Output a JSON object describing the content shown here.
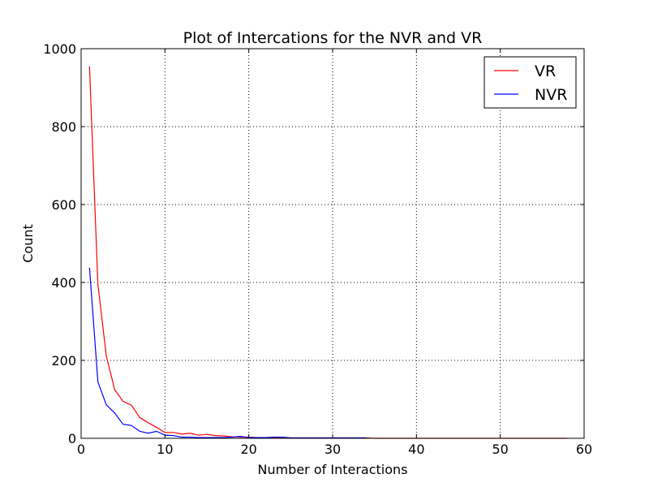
{
  "chart_data": {
    "type": "line",
    "title": "Plot of Intercations for the NVR and VR",
    "xlabel": "Number of Interactions",
    "ylabel": "Count",
    "xlim": [
      0,
      60
    ],
    "ylim": [
      0,
      1000
    ],
    "xticks": [
      "0",
      "10",
      "20",
      "30",
      "40",
      "50",
      "60"
    ],
    "yticks": [
      "0",
      "200",
      "400",
      "600",
      "800",
      "1000"
    ],
    "grid": true,
    "legend_position": "top-right",
    "series": [
      {
        "name": "VR",
        "color": "#ff0000",
        "x": [
          1,
          2,
          3,
          4,
          5,
          6,
          7,
          8,
          9,
          10,
          11,
          12,
          13,
          14,
          15,
          16,
          17,
          18,
          19,
          20,
          21,
          22,
          23,
          24,
          25,
          26,
          27,
          28,
          29,
          30,
          31,
          32,
          33,
          34,
          35,
          36,
          37,
          38,
          39,
          40,
          41,
          42,
          43,
          44,
          45,
          46,
          47,
          48,
          49,
          50,
          51,
          52,
          53,
          54,
          55,
          56,
          57,
          58
        ],
        "y": [
          955,
          395,
          212,
          125,
          95,
          85,
          53,
          40,
          28,
          15,
          15,
          11,
          13,
          8,
          10,
          7,
          6,
          4,
          3,
          3,
          2,
          2,
          2,
          1,
          1,
          1,
          1,
          1,
          1,
          1,
          1,
          1,
          1,
          1,
          0,
          0,
          0,
          0,
          0,
          0,
          0,
          0,
          0,
          0,
          0,
          0,
          0,
          0,
          0,
          0,
          0,
          0,
          0,
          0,
          0,
          0,
          0,
          0
        ]
      },
      {
        "name": "NVR",
        "color": "#0000ff",
        "x": [
          1,
          2,
          3,
          4,
          5,
          6,
          7,
          8,
          9,
          10,
          11,
          12,
          13,
          14,
          15,
          16,
          17,
          18,
          19,
          20,
          21,
          22,
          23,
          24,
          25,
          26,
          27,
          28,
          29,
          30,
          31,
          32,
          33,
          34
        ],
        "y": [
          438,
          145,
          86,
          65,
          36,
          33,
          18,
          13,
          18,
          8,
          7,
          3,
          3,
          2,
          2,
          2,
          2,
          3,
          5,
          2,
          2,
          2,
          3,
          3,
          1,
          1,
          1,
          1,
          1,
          1,
          1,
          1,
          1,
          1
        ]
      }
    ]
  }
}
